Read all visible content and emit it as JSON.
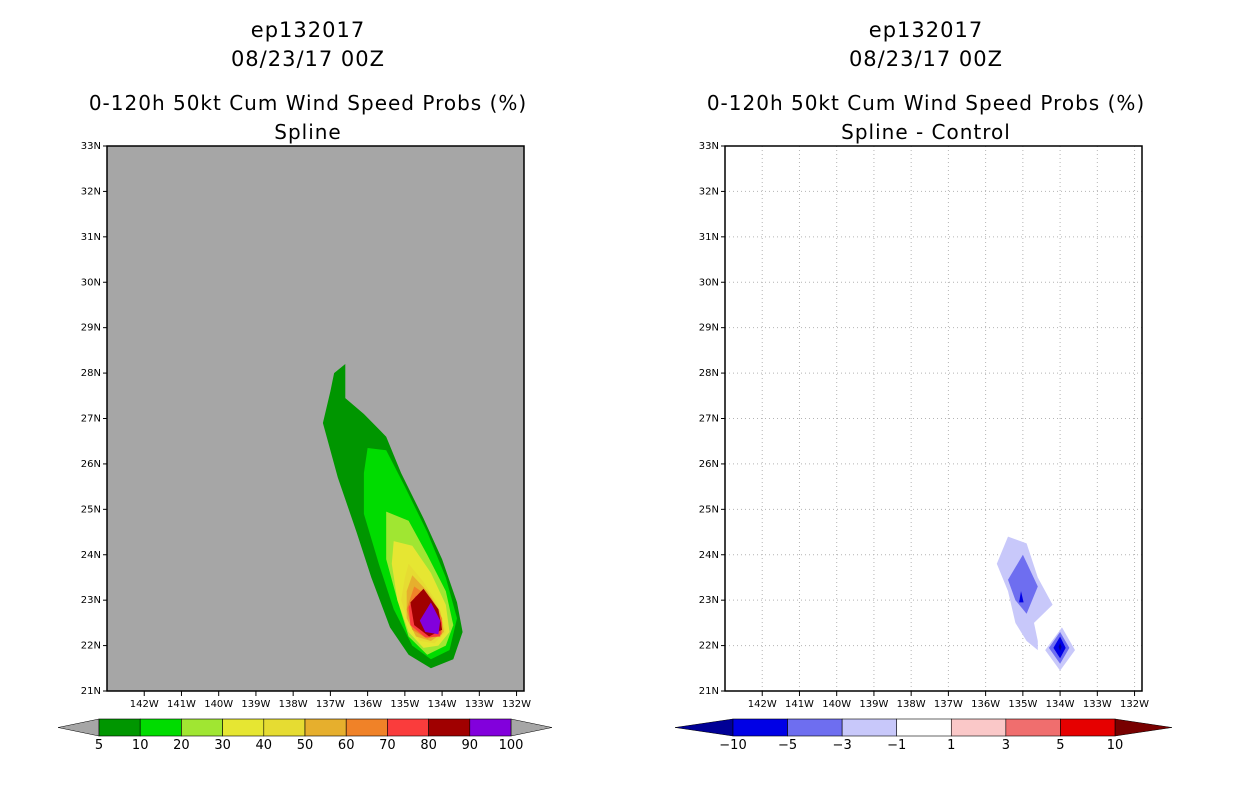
{
  "chart_data": [
    {
      "type": "heatmap",
      "storm_id": "ep132017",
      "date": "08/23/17 00Z",
      "title": "0-120h 50kt Cum Wind Speed Probs (%)",
      "subtitle": "Spline",
      "background": "#a6a6a6",
      "show_grid": false,
      "xlim": [
        -143,
        -131.8
      ],
      "ylim": [
        21,
        33
      ],
      "x_ticks": [
        "142W",
        "141W",
        "140W",
        "139W",
        "138W",
        "137W",
        "136W",
        "135W",
        "134W",
        "133W",
        "132W"
      ],
      "y_ticks": [
        "21N",
        "22N",
        "23N",
        "24N",
        "25N",
        "26N",
        "27N",
        "28N",
        "29N",
        "30N",
        "31N",
        "32N",
        "33N"
      ],
      "colorbar": {
        "labels": [
          "5",
          "10",
          "20",
          "30",
          "40",
          "50",
          "60",
          "70",
          "80",
          "90",
          "100"
        ],
        "colors": [
          "#009600",
          "#00dc00",
          "#a0e632",
          "#e6e632",
          "#e6dc32",
          "#e6af2d",
          "#f08228",
          "#fa3c3c",
          "#a00000",
          "#8200dc"
        ],
        "end_color": "#a6a6a6"
      },
      "contours": [
        {
          "level": 5,
          "color": "#009600",
          "points": [
            [
              -136.9,
              28.0
            ],
            [
              -136.6,
              28.2
            ],
            [
              -136.6,
              27.45
            ],
            [
              -136.1,
              27.1
            ],
            [
              -135.5,
              26.6
            ],
            [
              -135.1,
              25.8
            ],
            [
              -134.5,
              24.8
            ],
            [
              -134.0,
              23.9
            ],
            [
              -133.6,
              22.95
            ],
            [
              -133.45,
              22.3
            ],
            [
              -133.7,
              21.7
            ],
            [
              -134.3,
              21.5
            ],
            [
              -134.9,
              21.8
            ],
            [
              -135.4,
              22.4
            ],
            [
              -135.9,
              23.5
            ],
            [
              -136.3,
              24.5
            ],
            [
              -136.8,
              25.7
            ],
            [
              -137.2,
              26.9
            ],
            [
              -137.0,
              27.6
            ]
          ]
        },
        {
          "level": 10,
          "color": "#00dc00",
          "points": [
            [
              -136.0,
              26.35
            ],
            [
              -135.5,
              26.3
            ],
            [
              -135.0,
              25.5
            ],
            [
              -134.4,
              24.5
            ],
            [
              -133.9,
              23.5
            ],
            [
              -133.6,
              22.6
            ],
            [
              -133.8,
              21.9
            ],
            [
              -134.3,
              21.7
            ],
            [
              -134.8,
              22.0
            ],
            [
              -135.3,
              22.8
            ],
            [
              -135.7,
              23.8
            ],
            [
              -136.1,
              24.9
            ],
            [
              -136.1,
              25.8
            ]
          ]
        },
        {
          "level": 20,
          "color": "#a0e632",
          "points": [
            [
              -135.5,
              24.95
            ],
            [
              -134.9,
              24.75
            ],
            [
              -134.4,
              24.0
            ],
            [
              -133.9,
              23.2
            ],
            [
              -133.7,
              22.45
            ],
            [
              -133.9,
              22.0
            ],
            [
              -134.4,
              21.8
            ],
            [
              -134.9,
              22.2
            ],
            [
              -135.2,
              23.0
            ],
            [
              -135.5,
              23.9
            ]
          ]
        },
        {
          "level": 30,
          "color": "#e6e632",
          "points": [
            [
              -135.3,
              24.3
            ],
            [
              -134.8,
              24.2
            ],
            [
              -134.3,
              23.6
            ],
            [
              -133.9,
              22.9
            ],
            [
              -133.8,
              22.3
            ],
            [
              -134.1,
              22.0
            ],
            [
              -134.5,
              21.95
            ],
            [
              -134.9,
              22.3
            ],
            [
              -135.2,
              23.0
            ],
            [
              -135.35,
              23.8
            ]
          ]
        },
        {
          "level": 40,
          "color": "#e6dc32",
          "points": [
            [
              -134.9,
              23.8
            ],
            [
              -134.5,
              23.4
            ],
            [
              -134.1,
              22.9
            ],
            [
              -133.9,
              22.3
            ],
            [
              -134.2,
              22.05
            ],
            [
              -134.6,
              22.1
            ],
            [
              -134.9,
              22.5
            ],
            [
              -135.1,
              23.0
            ],
            [
              -135.0,
              23.5
            ]
          ]
        },
        {
          "level": 50,
          "color": "#e6af2d",
          "points": [
            [
              -134.8,
              23.55
            ],
            [
              -134.4,
              23.2
            ],
            [
              -134.05,
              22.75
            ],
            [
              -133.95,
              22.3
            ],
            [
              -134.3,
              22.1
            ],
            [
              -134.7,
              22.2
            ],
            [
              -134.95,
              22.6
            ],
            [
              -134.95,
              23.2
            ]
          ]
        },
        {
          "level": 60,
          "color": "#f08228",
          "points": [
            [
              -134.75,
              23.3
            ],
            [
              -134.3,
              23.05
            ],
            [
              -134.0,
              22.6
            ],
            [
              -134.0,
              22.25
            ],
            [
              -134.4,
              22.15
            ],
            [
              -134.8,
              22.35
            ],
            [
              -134.95,
              22.8
            ]
          ]
        },
        {
          "level": 70,
          "color": "#fa3c3c",
          "points": [
            [
              -134.7,
              23.1
            ],
            [
              -134.25,
              22.9
            ],
            [
              -134.0,
              22.5
            ],
            [
              -134.05,
              22.2
            ],
            [
              -134.45,
              22.18
            ],
            [
              -134.85,
              22.45
            ],
            [
              -134.9,
              22.85
            ]
          ]
        },
        {
          "level": 80,
          "color": "#a00000",
          "points": [
            [
              -134.5,
              23.25
            ],
            [
              -134.1,
              22.8
            ],
            [
              -134.0,
              22.35
            ],
            [
              -134.35,
              22.2
            ],
            [
              -134.75,
              22.45
            ],
            [
              -134.85,
              22.95
            ]
          ]
        },
        {
          "level": 90,
          "color": "#8200dc",
          "points": [
            [
              -134.3,
              22.95
            ],
            [
              -134.05,
              22.55
            ],
            [
              -134.1,
              22.25
            ],
            [
              -134.45,
              22.3
            ],
            [
              -134.6,
              22.55
            ]
          ]
        }
      ]
    },
    {
      "type": "heatmap",
      "storm_id": "ep132017",
      "date": "08/23/17 00Z",
      "title": "0-120h 50kt Cum Wind Speed Probs (%)",
      "subtitle": "Spline - Control",
      "background": "#ffffff",
      "show_grid": true,
      "xlim": [
        -143,
        -131.8
      ],
      "ylim": [
        21,
        33
      ],
      "x_ticks": [
        "142W",
        "141W",
        "140W",
        "139W",
        "138W",
        "137W",
        "136W",
        "135W",
        "134W",
        "133W",
        "132W"
      ],
      "y_ticks": [
        "21N",
        "22N",
        "23N",
        "24N",
        "25N",
        "26N",
        "27N",
        "28N",
        "29N",
        "30N",
        "31N",
        "32N",
        "33N"
      ],
      "colorbar": {
        "labels": [
          "-10",
          "-5",
          "-3",
          "-1",
          "1",
          "3",
          "5",
          "10"
        ],
        "colors": [
          "#0000e6",
          "#6e6ef0",
          "#c8c8fa",
          "#ffffff",
          "#fac8c8",
          "#f06e6e",
          "#e60000"
        ],
        "left_end_color": "#000096",
        "right_end_color": "#780000"
      },
      "contours": [
        {
          "level": -1,
          "color": "#c8c8fa",
          "points": [
            [
              -135.4,
              24.4
            ],
            [
              -134.9,
              24.25
            ],
            [
              -134.6,
              23.5
            ],
            [
              -134.2,
              22.9
            ],
            [
              -134.7,
              22.5
            ],
            [
              -134.6,
              22.1
            ],
            [
              -134.6,
              21.9
            ],
            [
              -134.9,
              22.1
            ],
            [
              -135.2,
              22.5
            ],
            [
              -135.4,
              23.2
            ],
            [
              -135.7,
              23.8
            ]
          ]
        },
        {
          "level": -1,
          "color": "#c8c8fa",
          "points": [
            [
              -133.95,
              22.4
            ],
            [
              -133.6,
              21.9
            ],
            [
              -134.0,
              21.45
            ],
            [
              -134.4,
              21.9
            ]
          ]
        },
        {
          "level": -3,
          "color": "#6e6ef0",
          "points": [
            [
              -135.0,
              24.0
            ],
            [
              -134.6,
              23.3
            ],
            [
              -134.9,
              22.7
            ],
            [
              -135.2,
              23.0
            ],
            [
              -135.4,
              23.45
            ]
          ]
        },
        {
          "level": -3,
          "color": "#6e6ef0",
          "points": [
            [
              -134.0,
              22.3
            ],
            [
              -133.75,
              21.95
            ],
            [
              -134.0,
              21.6
            ],
            [
              -134.3,
              21.95
            ]
          ]
        },
        {
          "level": -5,
          "color": "#0000e6",
          "points": [
            [
              -134.0,
              22.2
            ],
            [
              -133.85,
              21.95
            ],
            [
              -134.0,
              21.72
            ],
            [
              -134.18,
              21.95
            ]
          ]
        },
        {
          "level": -5,
          "color": "#0000e6",
          "points": [
            [
              -135.05,
              23.2
            ],
            [
              -134.98,
              22.95
            ],
            [
              -135.1,
              22.95
            ]
          ]
        },
        {
          "level": -10,
          "color": "#000096",
          "points": [
            [
              -134.0,
              22.06
            ],
            [
              -133.96,
              21.97
            ],
            [
              -134.0,
              21.88
            ],
            [
              -134.04,
              21.97
            ]
          ]
        }
      ]
    }
  ]
}
